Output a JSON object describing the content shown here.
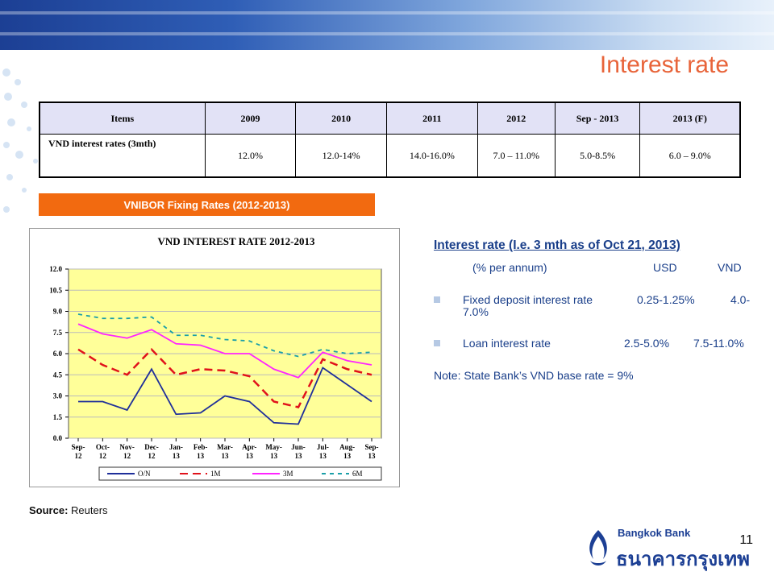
{
  "title": "Interest rate",
  "table": {
    "headers": [
      "Items",
      "2009",
      "2010",
      "2011",
      "2012",
      "Sep - 2013",
      "2013 (F)"
    ],
    "row_label": "VND interest rates (3mth)",
    "row_values": [
      "12.0%",
      "12.0-14%",
      "14.0-16.0%",
      "7.0 – 11.0%",
      "5.0-8.5%",
      "6.0 – 9.0%"
    ]
  },
  "chart_banner": "VNIBOR Fixing Rates (2012-2013)",
  "chart_data": {
    "type": "line",
    "title": "VND INTEREST RATE 2012-2013",
    "categories": [
      "Sep-12",
      "Oct-12",
      "Nov-12",
      "Dec-12",
      "Jan-13",
      "Feb-13",
      "Mar-13",
      "Apr-13",
      "May-13",
      "Jun-13",
      "Jul-13",
      "Aug-13",
      "Sep-13"
    ],
    "category_lines": [
      [
        "Sep-",
        "12"
      ],
      [
        "Oct-",
        "12"
      ],
      [
        "Nov-",
        "12"
      ],
      [
        "Dec-",
        "12"
      ],
      [
        "Jan-",
        "13"
      ],
      [
        "Feb-",
        "13"
      ],
      [
        "Mar-",
        "13"
      ],
      [
        "Apr-",
        "13"
      ],
      [
        "May-",
        "13"
      ],
      [
        "Jun-",
        "13"
      ],
      [
        "Jul-",
        "13"
      ],
      [
        "Aug-",
        "13"
      ],
      [
        "Sep-",
        "13"
      ]
    ],
    "yticks": [
      "0.0",
      "1.5",
      "3.0",
      "4.5",
      "6.0",
      "7.5",
      "9.0",
      "10.5",
      "12.0"
    ],
    "ylim": [
      0,
      12
    ],
    "grid": true,
    "legend_position": "bottom",
    "series": [
      {
        "name": "O/N",
        "color": "#1f2f9a",
        "dash": "",
        "values": [
          2.6,
          2.6,
          2.0,
          4.9,
          1.7,
          1.8,
          3.0,
          2.6,
          1.1,
          1.0,
          5.0,
          3.8,
          2.6
        ]
      },
      {
        "name": "1M",
        "color": "#e0121b",
        "dash": "10,6",
        "values": [
          6.3,
          5.2,
          4.5,
          6.3,
          4.5,
          4.9,
          4.8,
          4.4,
          2.6,
          2.2,
          5.6,
          4.9,
          4.5
        ]
      },
      {
        "name": "3M",
        "color": "#ff24ff",
        "dash": "",
        "values": [
          8.1,
          7.4,
          7.1,
          7.7,
          6.7,
          6.6,
          6.0,
          6.0,
          4.9,
          4.3,
          6.1,
          5.5,
          5.2
        ]
      },
      {
        "name": "6M",
        "color": "#1b9fa8",
        "dash": "5,5",
        "values": [
          8.8,
          8.5,
          8.5,
          8.6,
          7.3,
          7.3,
          7.0,
          6.9,
          6.2,
          5.8,
          6.3,
          6.0,
          6.1
        ]
      }
    ]
  },
  "info": {
    "heading": "Interest rate (I.e. 3 mth as of Oct 21, 2013)",
    "unit": "(% per annum)",
    "col_usd": "USD",
    "col_vnd": "VND",
    "fixed_label": "Fixed deposit interest rate",
    "fixed_usd": "0.25-1.25%",
    "fixed_vnd_a": "4.0-",
    "fixed_vnd_b": "7.0%",
    "loan_label": "Loan interest rate",
    "loan_usd": "2.5-5.0%",
    "loan_vnd": "7.5-11.0%",
    "note": "Note: State Bank’s VND base rate = 9%"
  },
  "source_label": "Source:",
  "source_value": "Reuters",
  "page_number": "11",
  "logo": {
    "en": "Bangkok Bank",
    "th": "ธนาคารกรุงเทพ"
  }
}
